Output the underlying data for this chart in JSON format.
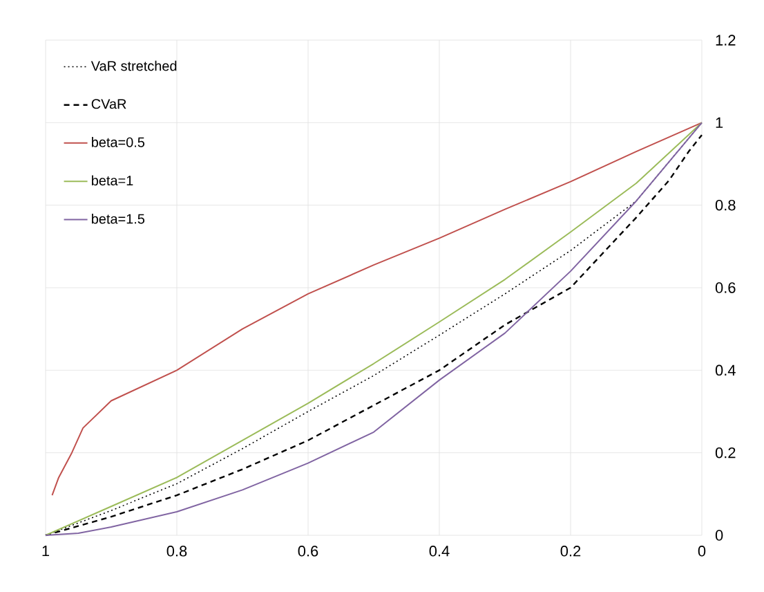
{
  "chart_data": {
    "type": "line",
    "xlim": [
      1,
      0
    ],
    "ylim": [
      0,
      1.2
    ],
    "xticks": [
      1,
      0.8,
      0.6,
      0.4,
      0.2,
      0
    ],
    "yticks": [
      0,
      0.2,
      0.4,
      0.6,
      0.8,
      1,
      1.2
    ],
    "grid": true,
    "legend": "top left",
    "marker": "none",
    "series": [
      {
        "name": "VaR stretched",
        "color": "#000000",
        "line_style": "dotted",
        "x": [
          1,
          0.9,
          0.8,
          0.7,
          0.6,
          0.5,
          0.4,
          0.3,
          0.2,
          0.1,
          0
        ],
        "values": [
          0,
          0.06,
          0.125,
          0.21,
          0.3,
          0.387,
          0.485,
          0.585,
          0.69,
          0.81,
          1
        ]
      },
      {
        "name": "CVaR",
        "color": "#000000",
        "line_style": "dashed",
        "x": [
          1,
          0.9,
          0.8,
          0.7,
          0.6,
          0.5,
          0.4,
          0.3,
          0.2,
          0.1,
          0.05,
          0.02,
          0
        ],
        "values": [
          0,
          0.045,
          0.097,
          0.16,
          0.23,
          0.315,
          0.4,
          0.51,
          0.6,
          0.77,
          0.86,
          0.93,
          0.97
        ]
      },
      {
        "name": "beta=0.5",
        "color": "#c0504d",
        "line_style": "solid",
        "x": [
          0.99,
          0.98,
          0.96,
          0.943,
          0.9,
          0.8,
          0.7,
          0.6,
          0.5,
          0.4,
          0.3,
          0.2,
          0.1,
          0
        ],
        "values": [
          0.097,
          0.14,
          0.2,
          0.26,
          0.326,
          0.4,
          0.5,
          0.585,
          0.655,
          0.72,
          0.79,
          0.857,
          0.93,
          1
        ]
      },
      {
        "name": "beta=1",
        "color": "#9bbb59",
        "line_style": "solid",
        "x": [
          1,
          0.9,
          0.8,
          0.7,
          0.6,
          0.5,
          0.4,
          0.3,
          0.2,
          0.1,
          0
        ],
        "values": [
          0,
          0.07,
          0.14,
          0.23,
          0.32,
          0.416,
          0.517,
          0.62,
          0.735,
          0.853,
          1
        ]
      },
      {
        "name": "beta=1.5",
        "color": "#8064a2",
        "line_style": "solid",
        "x": [
          1,
          0.95,
          0.9,
          0.8,
          0.7,
          0.6,
          0.5,
          0.4,
          0.3,
          0.2,
          0.1,
          0
        ],
        "values": [
          0,
          0.005,
          0.02,
          0.057,
          0.11,
          0.175,
          0.25,
          0.376,
          0.49,
          0.64,
          0.81,
          1
        ]
      }
    ]
  }
}
